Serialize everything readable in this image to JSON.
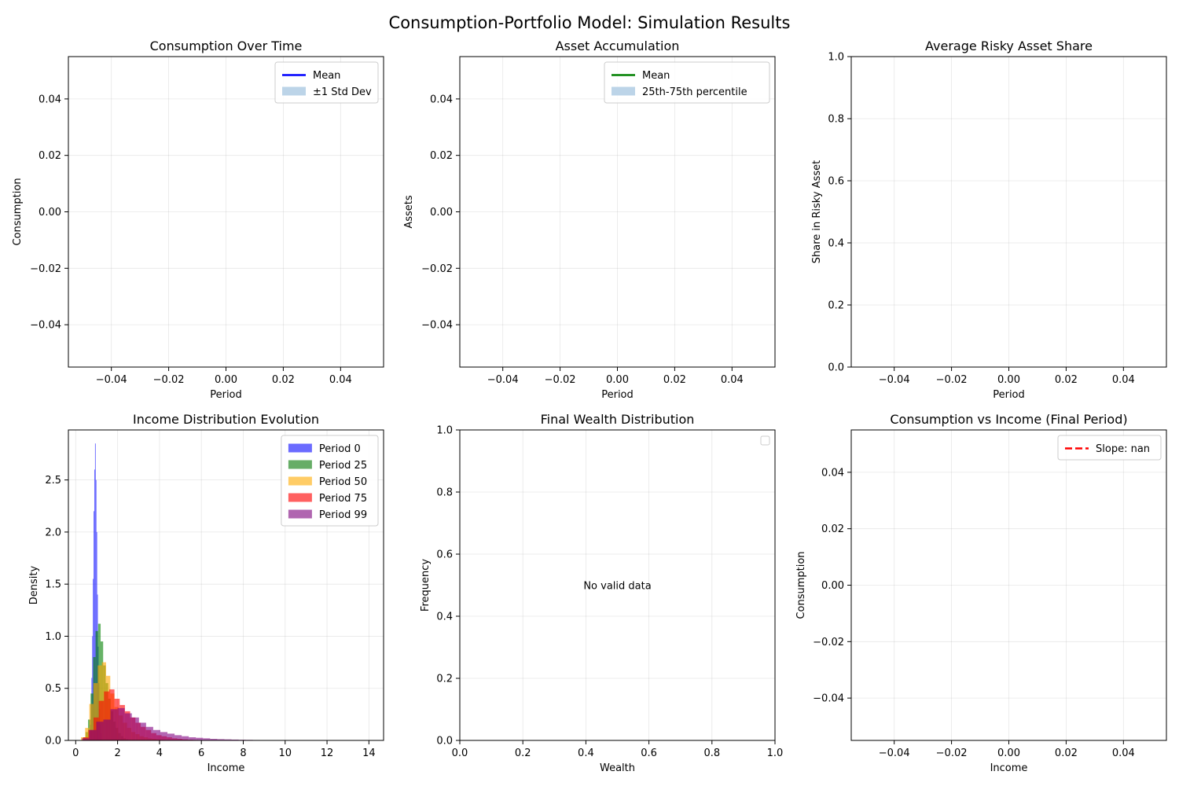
{
  "figure": {
    "title": "Consumption-Portfolio Model: Simulation Results"
  },
  "chart_data": [
    {
      "id": "consumption",
      "type": "line",
      "title": "Consumption Over Time",
      "xlabel": "Period",
      "ylabel": "Consumption",
      "xlim": [
        -0.055,
        0.055
      ],
      "ylim": [
        -0.055,
        0.055
      ],
      "xticks": [
        -0.04,
        -0.02,
        0.0,
        0.02,
        0.04
      ],
      "xtick_labels": [
        "−0.04",
        "−0.02",
        "0.00",
        "0.02",
        "0.04"
      ],
      "yticks": [
        -0.04,
        -0.02,
        0.0,
        0.02,
        0.04
      ],
      "ytick_labels": [
        "−0.04",
        "−0.02",
        "0.00",
        "0.02",
        "0.04"
      ],
      "grid": true,
      "legend_position": "upper right",
      "legend": [
        {
          "label": "Mean",
          "kind": "line",
          "color": "#0000ff"
        },
        {
          "label": "±1 Std Dev",
          "kind": "patch",
          "color": "#bcd4e8"
        }
      ],
      "series": []
    },
    {
      "id": "assets",
      "type": "line",
      "title": "Asset Accumulation",
      "xlabel": "Period",
      "ylabel": "Assets",
      "xlim": [
        -0.055,
        0.055
      ],
      "ylim": [
        -0.055,
        0.055
      ],
      "xticks": [
        -0.04,
        -0.02,
        0.0,
        0.02,
        0.04
      ],
      "xtick_labels": [
        "−0.04",
        "−0.02",
        "0.00",
        "0.02",
        "0.04"
      ],
      "yticks": [
        -0.04,
        -0.02,
        0.0,
        0.02,
        0.04
      ],
      "ytick_labels": [
        "−0.04",
        "−0.02",
        "0.00",
        "0.02",
        "0.04"
      ],
      "grid": true,
      "legend_position": "upper right",
      "legend": [
        {
          "label": "Mean",
          "kind": "line",
          "color": "#008000"
        },
        {
          "label": "25th-75th percentile",
          "kind": "patch",
          "color": "#bcd4e8"
        }
      ],
      "series": []
    },
    {
      "id": "risky-share",
      "type": "line",
      "title": "Average Risky Asset Share",
      "xlabel": "Period",
      "ylabel": "Share in Risky Asset",
      "xlim": [
        -0.055,
        0.055
      ],
      "ylim": [
        0,
        1
      ],
      "xticks": [
        -0.04,
        -0.02,
        0.0,
        0.02,
        0.04
      ],
      "xtick_labels": [
        "−0.04",
        "−0.02",
        "0.00",
        "0.02",
        "0.04"
      ],
      "yticks": [
        0,
        0.2,
        0.4,
        0.6,
        0.8,
        1.0
      ],
      "ytick_labels": [
        "0.0",
        "0.2",
        "0.4",
        "0.6",
        "0.8",
        "1.0"
      ],
      "grid": true,
      "legend": [],
      "series": []
    },
    {
      "id": "income-dist",
      "type": "histogram",
      "title": "Income Distribution Evolution",
      "xlabel": "Income",
      "ylabel": "Density",
      "xlim": [
        -0.35,
        14.7
      ],
      "ylim": [
        0,
        2.98
      ],
      "xticks": [
        0,
        2,
        4,
        6,
        8,
        10,
        12,
        14
      ],
      "xtick_labels": [
        "0",
        "2",
        "4",
        "6",
        "8",
        "10",
        "12",
        "14"
      ],
      "yticks": [
        0,
        0.5,
        1.0,
        1.5,
        2.0,
        2.5
      ],
      "ytick_labels": [
        "0.0",
        "0.5",
        "1.0",
        "1.5",
        "2.0",
        "2.5"
      ],
      "grid": true,
      "legend_position": "upper right",
      "legend": [
        {
          "label": "Period 0",
          "kind": "patch",
          "color": "#6b6bff"
        },
        {
          "label": "Period 25",
          "kind": "patch",
          "color": "#66ad66"
        },
        {
          "label": "Period 50",
          "kind": "patch",
          "color": "#ffcc66"
        },
        {
          "label": "Period 75",
          "kind": "patch",
          "color": "#ff6060"
        },
        {
          "label": "Period 99",
          "kind": "patch",
          "color": "#b066b0"
        }
      ],
      "series": [
        {
          "name": "Period 0",
          "color": "#0000ff",
          "opacity": 0.6,
          "x0": 0.65,
          "width": 0.034,
          "values": [
            0.08,
            0.15,
            0.35,
            0.6,
            1.0,
            1.55,
            2.2,
            2.6,
            2.85,
            2.5,
            2.0,
            1.4,
            0.9,
            0.55,
            0.3,
            0.15,
            0.07
          ]
        },
        {
          "name": "Period 25",
          "color": "#008000",
          "opacity": 0.6,
          "x0": 0.35,
          "width": 0.12,
          "values": [
            0.03,
            0.08,
            0.2,
            0.45,
            0.8,
            1.05,
            1.12,
            0.95,
            0.72,
            0.55,
            0.4,
            0.28,
            0.18,
            0.12,
            0.07,
            0.04,
            0.02,
            0.01
          ]
        },
        {
          "name": "Period 50",
          "color": "#ffa500",
          "opacity": 0.6,
          "x0": 0.25,
          "width": 0.2,
          "values": [
            0.03,
            0.12,
            0.35,
            0.55,
            0.72,
            0.75,
            0.62,
            0.45,
            0.32,
            0.24,
            0.17,
            0.12,
            0.08,
            0.06,
            0.04,
            0.03,
            0.02,
            0.015,
            0.01,
            0.005
          ]
        },
        {
          "name": "Period 75",
          "color": "#ff0000",
          "opacity": 0.6,
          "x0": 0.35,
          "width": 0.25,
          "values": [
            0.03,
            0.1,
            0.22,
            0.38,
            0.47,
            0.49,
            0.4,
            0.34,
            0.28,
            0.22,
            0.17,
            0.13,
            0.1,
            0.07,
            0.05,
            0.04,
            0.03,
            0.02,
            0.015,
            0.01,
            0.007,
            0.005,
            0.003,
            0.002
          ]
        },
        {
          "name": "Period 99",
          "color": "#800080",
          "opacity": 0.6,
          "x0": 0.3,
          "width": 0.34,
          "values": [
            0.02,
            0.1,
            0.18,
            0.2,
            0.3,
            0.31,
            0.26,
            0.22,
            0.17,
            0.13,
            0.1,
            0.08,
            0.065,
            0.05,
            0.04,
            0.03,
            0.025,
            0.02,
            0.015,
            0.012,
            0.01,
            0.008,
            0.006,
            0.005,
            0.004,
            0.003,
            0.003,
            0.002,
            0.002,
            0.003
          ]
        }
      ]
    },
    {
      "id": "final-wealth",
      "type": "histogram",
      "title": "Final Wealth Distribution",
      "xlabel": "Wealth",
      "ylabel": "Frequency",
      "xlim": [
        0,
        1
      ],
      "ylim": [
        0,
        1
      ],
      "xticks": [
        0,
        0.2,
        0.4,
        0.6,
        0.8,
        1.0
      ],
      "xtick_labels": [
        "0.0",
        "0.2",
        "0.4",
        "0.6",
        "0.8",
        "1.0"
      ],
      "yticks": [
        0,
        0.2,
        0.4,
        0.6,
        0.8,
        1.0
      ],
      "ytick_labels": [
        "0.0",
        "0.2",
        "0.4",
        "0.6",
        "0.8",
        "1.0"
      ],
      "grid": true,
      "legend_position": "upper right",
      "legend_empty": true,
      "legend": [],
      "annotation": {
        "text": "No valid data",
        "x": 0.5,
        "y": 0.5
      },
      "series": []
    },
    {
      "id": "cons-vs-income",
      "type": "scatter",
      "title": "Consumption vs Income (Final Period)",
      "xlabel": "Income",
      "ylabel": "Consumption",
      "xlim": [
        -0.055,
        0.055
      ],
      "ylim": [
        -0.055,
        0.055
      ],
      "xticks": [
        -0.04,
        -0.02,
        0.0,
        0.02,
        0.04
      ],
      "xtick_labels": [
        "−0.04",
        "−0.02",
        "0.00",
        "0.02",
        "0.04"
      ],
      "yticks": [
        -0.04,
        -0.02,
        0.0,
        0.02,
        0.04
      ],
      "ytick_labels": [
        "−0.04",
        "−0.02",
        "0.00",
        "0.02",
        "0.04"
      ],
      "grid": true,
      "legend_position": "upper right",
      "legend": [
        {
          "label": "Slope: nan",
          "kind": "dashed",
          "color": "#ff0000"
        }
      ],
      "series": []
    }
  ]
}
